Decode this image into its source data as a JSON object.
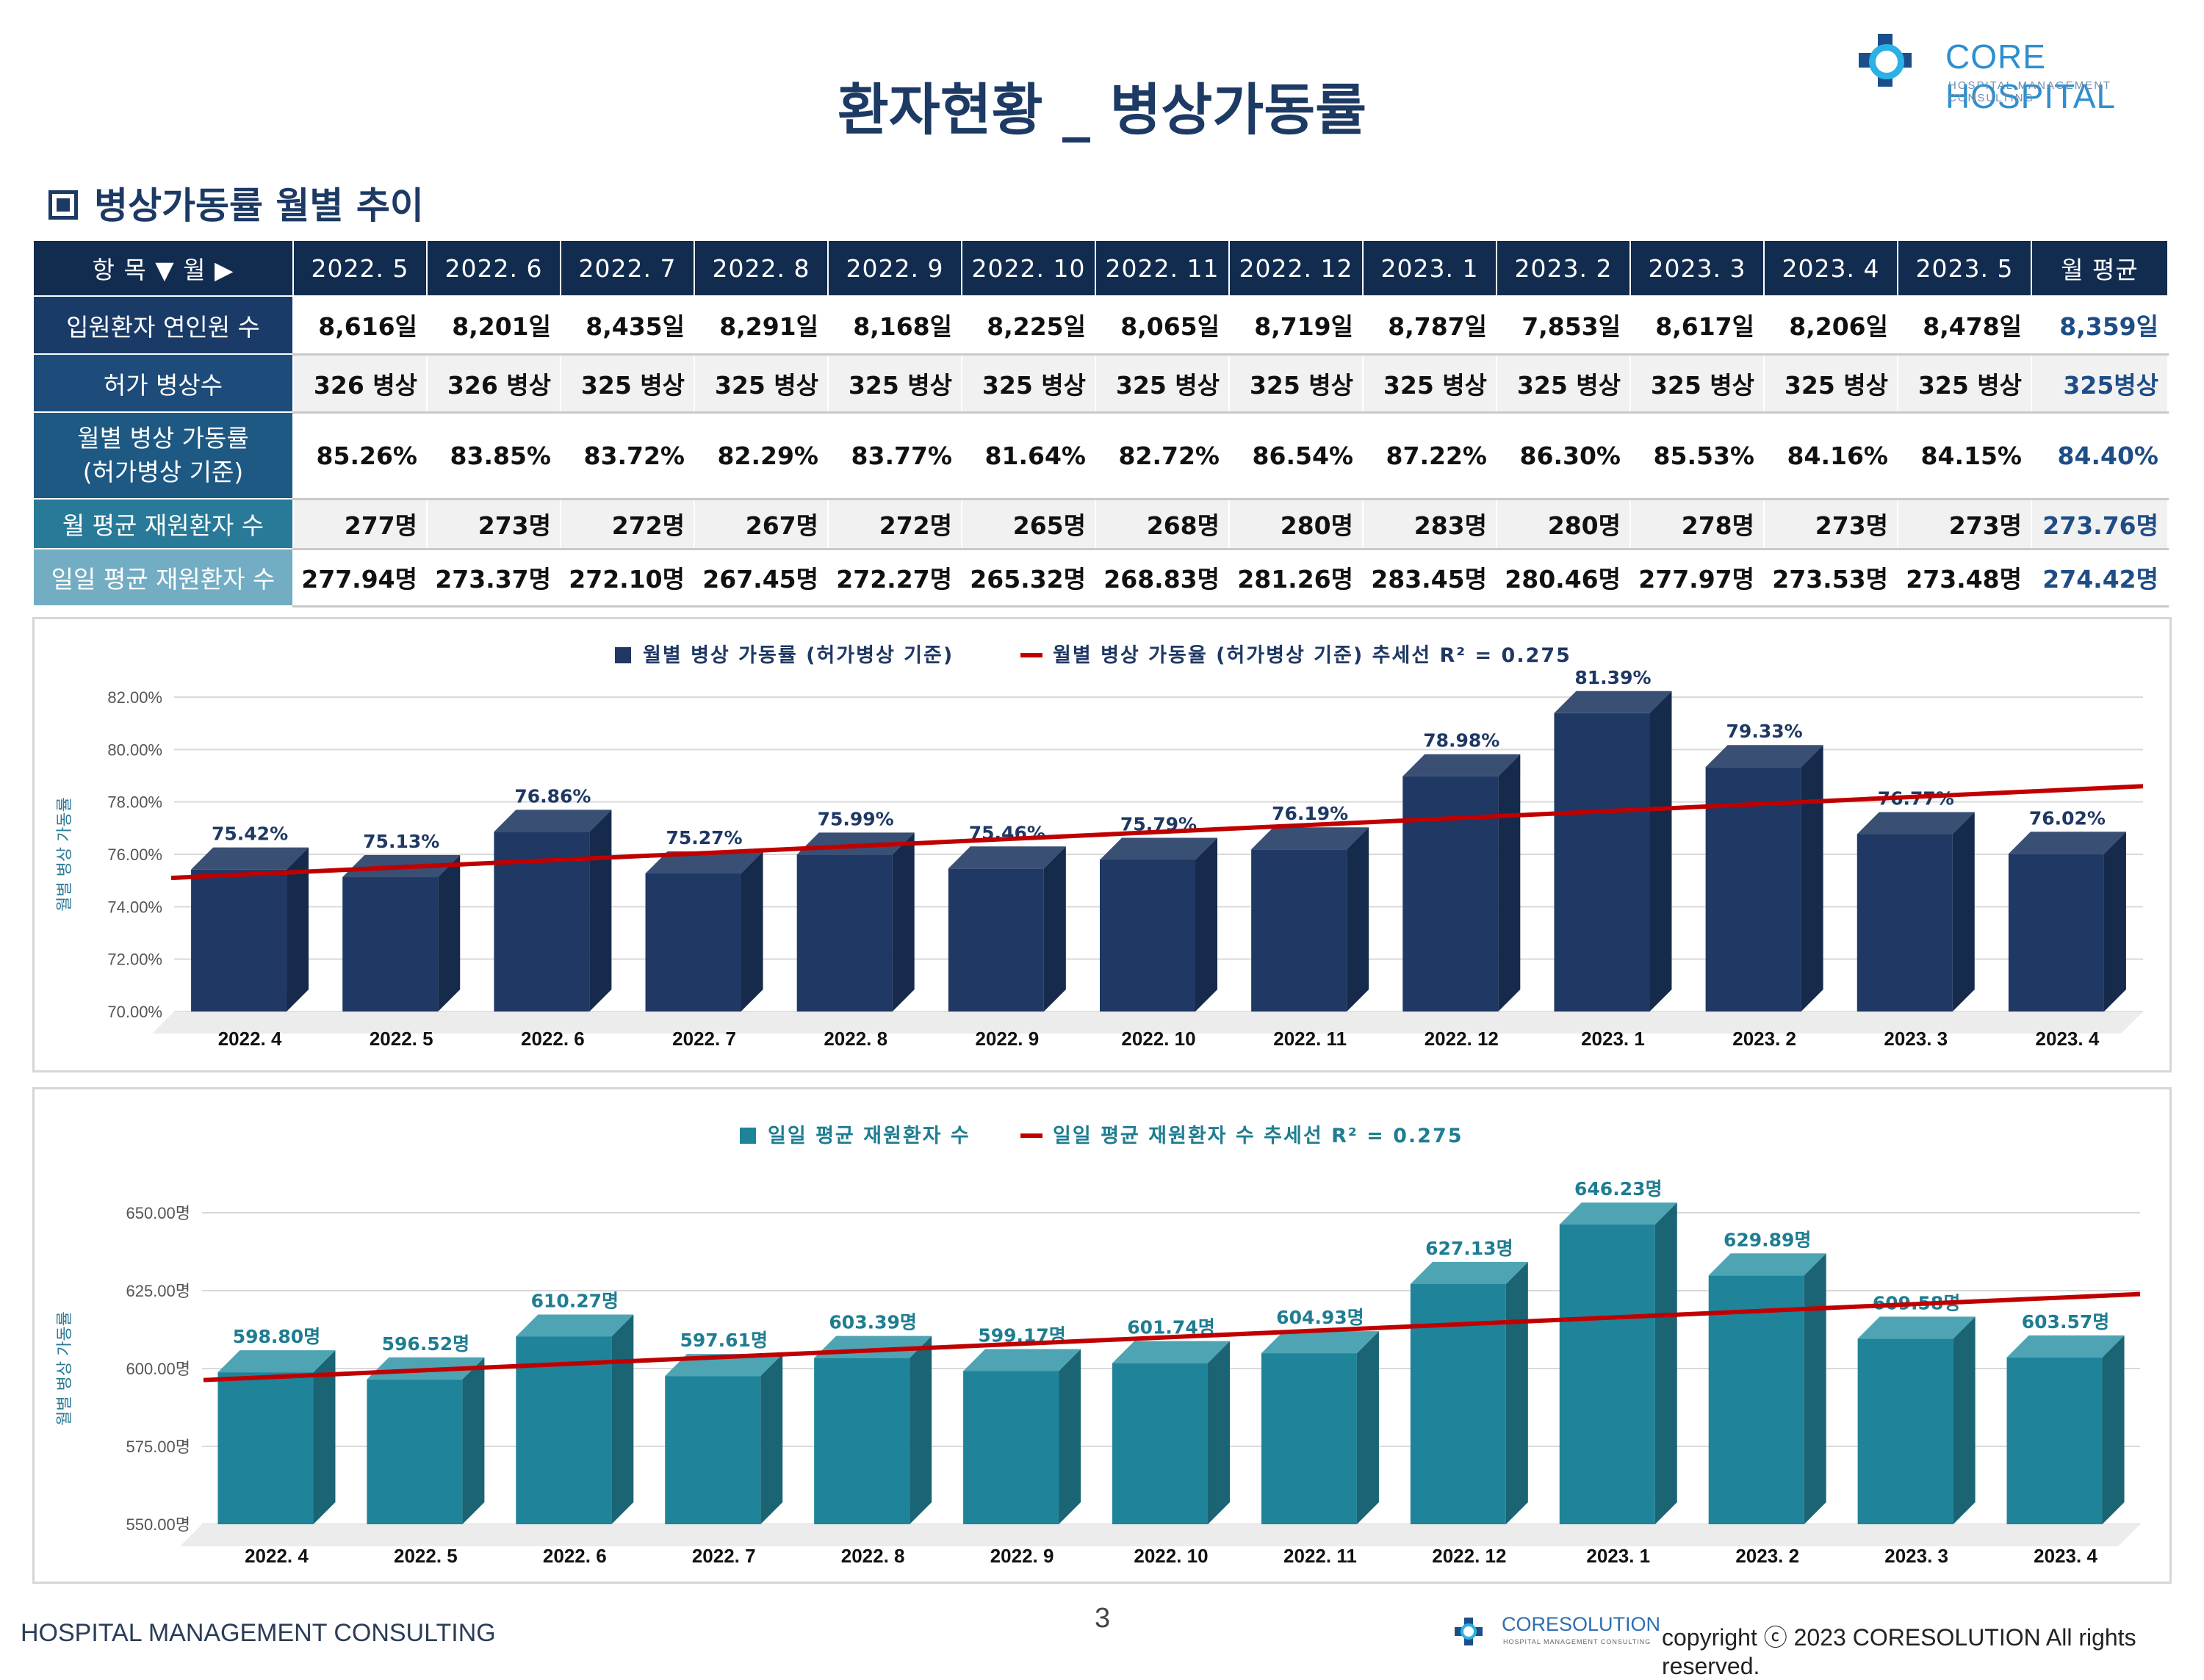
{
  "header": {
    "title": "환자현황 _ 병상가동률"
  },
  "logo": {
    "name": "CORE HOSPITAL",
    "sub": "HOSPITAL MANAGEMENT CONSULTING",
    "mark": "CO"
  },
  "section": {
    "title": "병상가동률 월별 추이"
  },
  "table": {
    "corner": "항 목 ▼ 월 ▶",
    "months": [
      "2022. 5",
      "2022. 6",
      "2022. 7",
      "2022. 8",
      "2022. 9",
      "2022. 10",
      "2022. 11",
      "2022. 12",
      "2023. 1",
      "2023. 2",
      "2023. 3",
      "2023. 4",
      "2023. 5"
    ],
    "avg_header": "월 평균",
    "rows": [
      {
        "label": "입원환자 연인원 수",
        "values": [
          "8,616일",
          "8,201일",
          "8,435일",
          "8,291일",
          "8,168일",
          "8,225일",
          "8,065일",
          "8,719일",
          "8,787일",
          "7,853일",
          "8,617일",
          "8,206일",
          "8,478일"
        ],
        "avg": "8,359일"
      },
      {
        "label": "허가 병상수",
        "values": [
          "326 병상",
          "326 병상",
          "325 병상",
          "325 병상",
          "325 병상",
          "325 병상",
          "325 병상",
          "325 병상",
          "325 병상",
          "325 병상",
          "325 병상",
          "325 병상",
          "325 병상"
        ],
        "avg": "325병상"
      },
      {
        "label": "월별 병상 가동률",
        "label2": "(허가병상 기준)",
        "values": [
          "85.26%",
          "83.85%",
          "83.72%",
          "82.29%",
          "83.77%",
          "81.64%",
          "82.72%",
          "86.54%",
          "87.22%",
          "86.30%",
          "85.53%",
          "84.16%",
          "84.15%"
        ],
        "avg": "84.40%"
      },
      {
        "label": "월 평균 재원환자 수",
        "values": [
          "277명",
          "273명",
          "272명",
          "267명",
          "272명",
          "265명",
          "268명",
          "280명",
          "283명",
          "280명",
          "278명",
          "273명",
          "273명"
        ],
        "avg": "273.76명"
      },
      {
        "label": "일일 평균 재원환자 수",
        "values": [
          "277.94명",
          "273.37명",
          "272.10명",
          "267.45명",
          "272.27명",
          "265.32명",
          "268.83명",
          "281.26명",
          "283.45명",
          "280.46명",
          "277.97명",
          "273.53명",
          "273.48명"
        ],
        "avg": "274.42명"
      }
    ]
  },
  "chart_data": [
    {
      "type": "bar",
      "legend_bar": "월별 병상 가동률 (허가병상 기준)",
      "legend_trend": "월별 병상 가동율 (허가병상 기준) 추세선 R² = 0.275",
      "ylabel": "월별 병상 가동률",
      "ylim": [
        70,
        82
      ],
      "yticks": [
        "82.00%",
        "80.00%",
        "78.00%",
        "76.00%",
        "74.00%",
        "72.00%",
        "70.00%"
      ],
      "categories": [
        "2022. 4",
        "2022. 5",
        "2022. 6",
        "2022. 7",
        "2022. 8",
        "2022. 9",
        "2022. 10",
        "2022. 11",
        "2022. 12",
        "2023. 1",
        "2023. 2",
        "2023. 3",
        "2023. 4"
      ],
      "values": [
        75.42,
        75.13,
        76.86,
        75.27,
        75.99,
        75.46,
        75.79,
        76.19,
        78.98,
        81.39,
        79.33,
        76.77,
        76.02
      ],
      "labels": [
        "75.42%",
        "75.13%",
        "76.86%",
        "75.27%",
        "75.99%",
        "75.46%",
        "75.79%",
        "76.19%",
        "78.98%",
        "81.39%",
        "79.33%",
        "76.77%",
        "76.02%"
      ],
      "trend": [
        75.1,
        78.6
      ],
      "colors": {
        "bar": "#1f3864",
        "bar_side": "#162a4b",
        "bar_top": "#3a4f74",
        "trend": "#c00000",
        "label": "#1f3864"
      }
    },
    {
      "type": "bar",
      "legend_bar": "일일 평균 재원환자 수",
      "legend_trend": "일일 평균 재원환자 수 추세선 R² = 0.275",
      "ylabel": "월별 병상 가동률",
      "ylim": [
        550,
        650
      ],
      "yticks": [
        "650.00명",
        "625.00명",
        "600.00명",
        "575.00명",
        "550.00명"
      ],
      "categories": [
        "2022. 4",
        "2022. 5",
        "2022. 6",
        "2022. 7",
        "2022. 8",
        "2022. 9",
        "2022. 10",
        "2022. 11",
        "2022. 12",
        "2023. 1",
        "2023. 2",
        "2023. 3",
        "2023. 4"
      ],
      "values": [
        598.8,
        596.52,
        610.27,
        597.61,
        603.39,
        599.17,
        601.74,
        604.93,
        627.13,
        646.23,
        629.89,
        609.58,
        603.57
      ],
      "labels": [
        "598.80명",
        "596.52명",
        "610.27명",
        "597.61명",
        "603.39명",
        "599.17명",
        "601.74명",
        "604.93명",
        "627.13명",
        "646.23명",
        "629.89명",
        "609.58명",
        "603.57명"
      ],
      "trend": [
        596.3,
        623.9
      ],
      "colors": {
        "bar": "#1f8499",
        "bar_side": "#1a6474",
        "bar_top": "#4ea4b3",
        "trend": "#c00000",
        "label": "#1f7d91"
      }
    }
  ],
  "footer": {
    "left": "HOSPITAL MANAGEMENT CONSULTING",
    "page": "3",
    "logo_name": "CORESOLUTION",
    "logo_sub": "HOSPITAL MANAGEMENT CONSULTING",
    "copyright": "copyright ⓒ 2023 CORESOLUTION All rights reserved."
  }
}
